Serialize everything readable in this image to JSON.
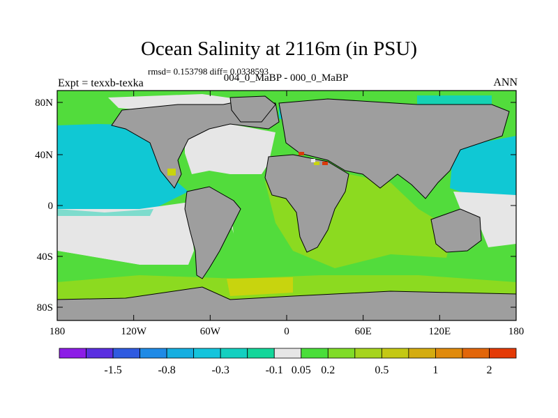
{
  "figure": {
    "title": "Ocean Salinity at 2116m (in PSU)",
    "stats": "rmsd= 0.153798 diff= 0.0338593",
    "subtitle": "004_0_MaBP - 000_0_MaBP",
    "left_label": "Expt = texxb-texka",
    "right_label": "ANN"
  },
  "axes": {
    "lat_labels": [
      "80N",
      "40N",
      "0",
      "40S",
      "80S"
    ],
    "lon_labels": [
      "180",
      "120W",
      "60W",
      "0",
      "60E",
      "120E",
      "180"
    ]
  },
  "colorbar": {
    "labels": [
      "-1.5",
      "-0.8",
      "-0.3",
      "-0.1",
      "0.05",
      "0.2",
      "0.5",
      "1",
      "2"
    ],
    "colors": [
      "#8c1ce6",
      "#5a2ee0",
      "#2f5ae0",
      "#1f8ae6",
      "#15aee0",
      "#14c4dc",
      "#14d0c0",
      "#14d69a",
      "#e6e6e6",
      "#4ade3a",
      "#80dc28",
      "#a6d41e",
      "#c4c814",
      "#d4ac10",
      "#e08a0c",
      "#e2660a",
      "#e43a06"
    ]
  },
  "map_colors": {
    "land": "#9e9e9e",
    "near_zero": "#e6e6e6",
    "green": "#52dc3c",
    "yellowgreen": "#8cda20",
    "olive": "#c8d40e",
    "cyan": "#10c8d4",
    "teal": "#16d2b4",
    "red": "#d83a0c",
    "coast": "#000000"
  }
}
